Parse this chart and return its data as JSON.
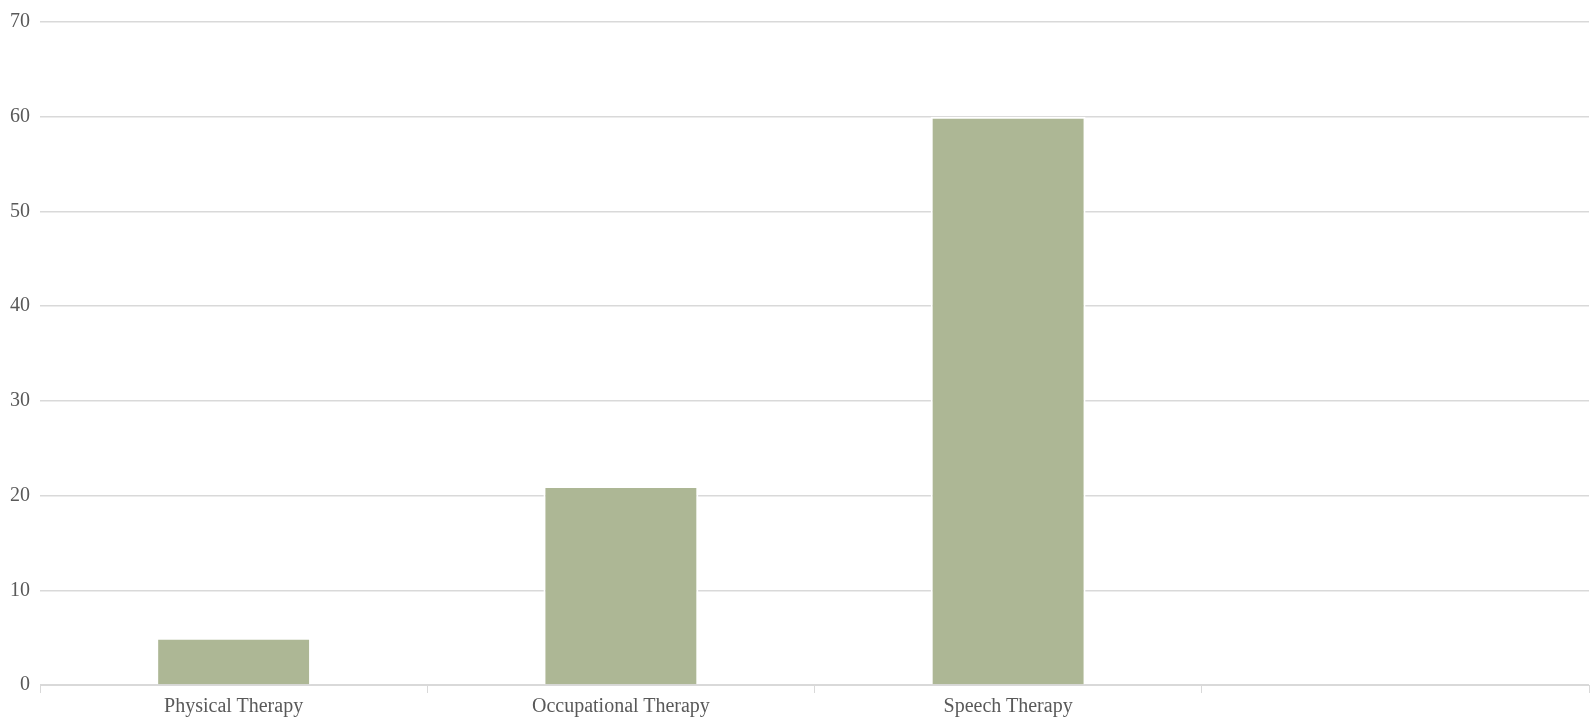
{
  "chart_data": {
    "type": "bar",
    "categories": [
      "Physical Therapy",
      "Occupational Therapy",
      "Speech Therapy",
      null
    ],
    "values": [
      5,
      21,
      60,
      null
    ],
    "color": "#adb795",
    "ylim": [
      0,
      70
    ],
    "yticks": [
      0,
      10,
      20,
      30,
      40,
      50,
      60,
      70
    ],
    "grid": "y",
    "legend": false
  }
}
